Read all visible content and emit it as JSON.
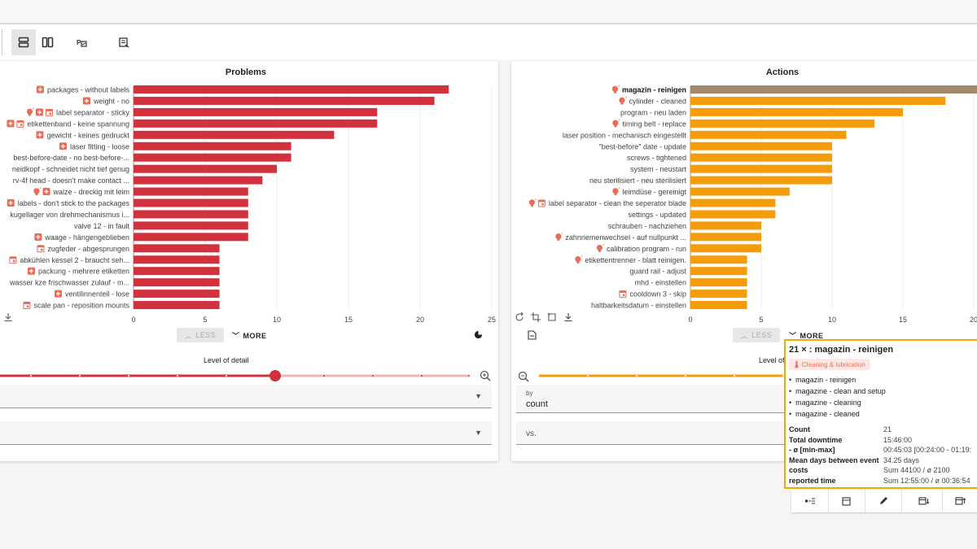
{
  "toolbar": {
    "icons": [
      "layout-rows-icon",
      "layout-columns-icon",
      "pareto-icon",
      "report-icon"
    ]
  },
  "panels": [
    {
      "id": "problems",
      "title": "Problems",
      "color": "#d1323d",
      "less_label": "LESS",
      "more_label": "MORE",
      "detail_label": "Level of detail",
      "detail_level": 0.59,
      "select_by": {
        "label": "",
        "value": ""
      },
      "select_vs": {
        "label": "",
        "value": ""
      }
    },
    {
      "id": "actions",
      "title": "Actions",
      "color": "#f59c0b",
      "highlight_color": "#a08a6b",
      "less_label": "LESS",
      "more_label": "MORE",
      "detail_label": "Level of",
      "select_by": {
        "label": "by",
        "value": "count"
      },
      "select_vs": {
        "label": "vs.",
        "value": ""
      }
    }
  ],
  "chart_data": [
    {
      "type": "bar",
      "orientation": "horizontal",
      "title": "Problems",
      "xlim": [
        0,
        25
      ],
      "ticks": [
        0,
        5,
        10,
        15,
        20,
        25
      ],
      "grid": true,
      "categories": [
        "packages - without labels",
        "weight - no",
        "label separator - sticky",
        "etikettenband - keine spannung",
        "gewicht - keines gedruckt",
        "laser fitting - loose",
        "best-before-date - no best-before-...",
        "neidkopf - schneidet nicht tief genug",
        "rv-4f head - doesn't make contact ...",
        "walze - dreckig mit leim",
        "labels - don't stick to the packages",
        "kugellager von drehmechanismus i...",
        "valve 12 - in fault",
        "waage - hängengeblieben",
        "zugfeder - abgesprungen",
        "abkühlen kessel 2 - braucht seh...",
        "packung - mehrere etiketten",
        "wasser kze frischwasser zulauf - m...",
        "ventilinnenteil - lose",
        "scale pan - reposition mounts"
      ],
      "values": [
        22,
        21,
        17,
        17,
        14,
        11,
        11,
        10,
        9,
        8,
        8,
        8,
        8,
        8,
        6,
        6,
        6,
        6,
        6,
        6
      ],
      "icons": [
        [
          "plus-icon"
        ],
        [
          "plus-icon"
        ],
        [
          "bulb-icon",
          "plus-icon",
          "calendar-icon"
        ],
        [
          "plus-icon",
          "calendar-icon"
        ],
        [
          "plus-icon"
        ],
        [
          "plus-icon"
        ],
        [],
        [],
        [],
        [
          "bulb-icon",
          "plus-icon"
        ],
        [
          "plus-icon"
        ],
        [],
        [],
        [
          "plus-icon"
        ],
        [
          "calendar-icon"
        ],
        [
          "calendar-icon"
        ],
        [
          "plus-icon"
        ],
        [],
        [
          "plus-icon"
        ],
        [
          "calendar-icon"
        ]
      ]
    },
    {
      "type": "bar",
      "orientation": "horizontal",
      "title": "Actions",
      "xlim": [
        0,
        25
      ],
      "ticks": [
        0,
        5,
        10,
        15,
        20
      ],
      "grid": true,
      "highlight_index": 0,
      "categories": [
        "magazin - reinigen",
        "cylinder - cleaned",
        "program - neu laden",
        "timing belt - replace",
        "laser position - mechanisch eingestellt",
        "\"best-before\" date - update",
        "screws - tightened",
        "system - neustart",
        "neu sterilisiert - neu sterilisiert",
        "leimdüse - gereinigt",
        "label separator - clean the seperator blade",
        "settings - updated",
        "schrauben - nachziehen",
        "zahnriemenwechsel - auf nullpunkt ...",
        "calibration program - run",
        "etikettentrenner - blatt reinigen.",
        "guard rail - adjust",
        "mhd - einstellen",
        "cooldown 3 - skip",
        "haltbarkeitsdatum - einstellen"
      ],
      "values": [
        21,
        18,
        15,
        13,
        11,
        10,
        10,
        10,
        10,
        7,
        6,
        6,
        5,
        5,
        5,
        4,
        4,
        4,
        4,
        4
      ],
      "icons": [
        [
          "bulb-icon"
        ],
        [
          "bulb-icon"
        ],
        [],
        [
          "bulb-icon"
        ],
        [],
        [],
        [],
        [],
        [],
        [
          "bulb-icon"
        ],
        [
          "bulb-icon",
          "calendar-icon"
        ],
        [],
        [],
        [
          "bulb-icon"
        ],
        [
          "bulb-icon"
        ],
        [
          "bulb-icon"
        ],
        [],
        [],
        [
          "calendar-icon"
        ],
        []
      ]
    }
  ],
  "tooltip": {
    "header": "21 × : magazin - reinigen",
    "category": "Cleaning & lubrication",
    "items": [
      "magazin - reinigen",
      "magazine - clean and setup",
      "magazine - cleaning",
      "magazine - cleaned"
    ],
    "stats": [
      {
        "k": "Count",
        "v": "21"
      },
      {
        "k": "Total downtime",
        "v": "15:46:00"
      },
      {
        "k": "- ø [min-max]",
        "v": "00:45:03 [00:24:00 - 01:19:"
      },
      {
        "k": "Mean days between event",
        "v": "34.25 days"
      },
      {
        "k": "costs",
        "v": "Sum 44100 / ø 2100"
      },
      {
        "k": "reported time",
        "v": "Sum 12:55:00 / ø 00:36:54"
      }
    ]
  }
}
